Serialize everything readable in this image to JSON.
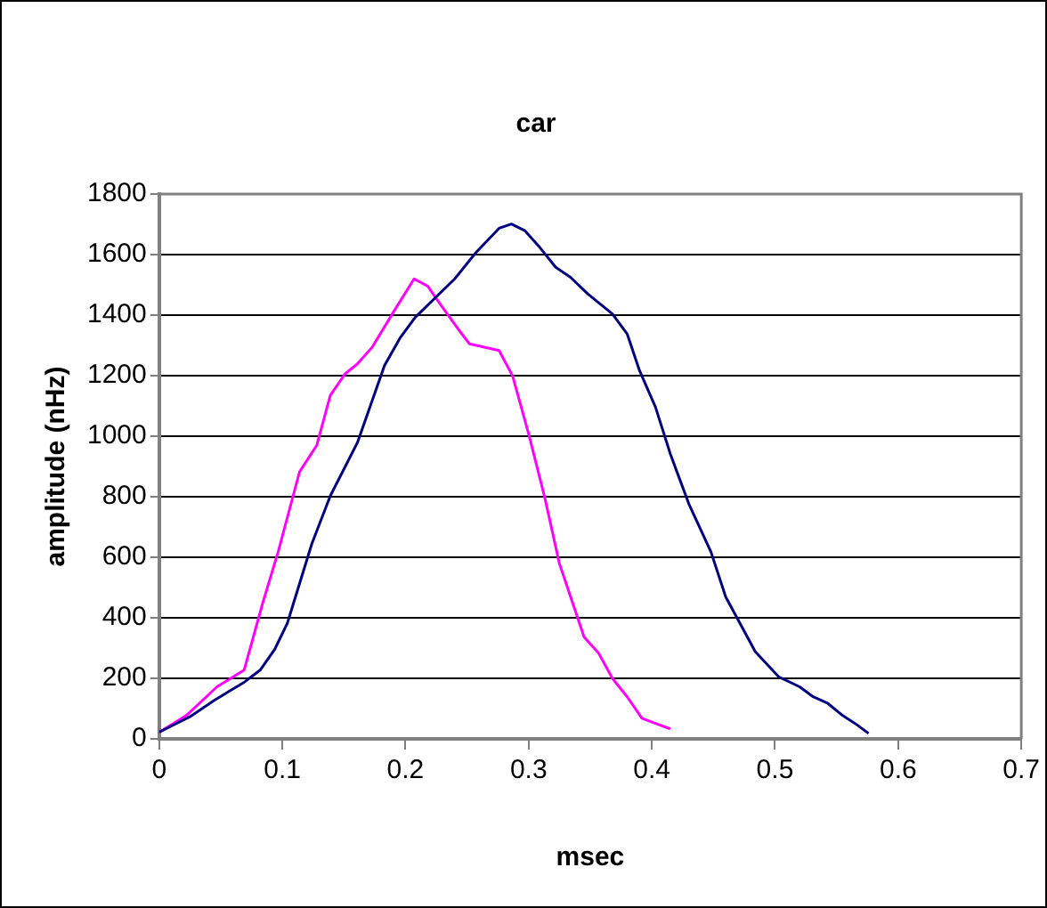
{
  "chart_data": {
    "type": "line",
    "title": "car",
    "xlabel": "msec",
    "ylabel": "amplitude (nHz)",
    "xlim": [
      0,
      0.7
    ],
    "xticks": [
      0,
      0.1,
      0.2,
      0.3,
      0.4,
      0.5,
      0.6,
      0.7
    ],
    "ylim": [
      0,
      1800
    ],
    "yticks": [
      0,
      200,
      400,
      600,
      800,
      1000,
      1200,
      1400,
      1600,
      1800
    ],
    "grid": "y",
    "legend": false,
    "marker": "none",
    "line_style": "solid",
    "series": [
      {
        "color": "#000080",
        "x": [
          0,
          0.025,
          0.045,
          0.069,
          0.082,
          0.094,
          0.104,
          0.124,
          0.139,
          0.161,
          0.183,
          0.196,
          0.208,
          0.24,
          0.257,
          0.276,
          0.286,
          0.297,
          0.309,
          0.322,
          0.334,
          0.348,
          0.368,
          0.38,
          0.39,
          0.403,
          0.415,
          0.43,
          0.448,
          0.46,
          0.484,
          0.503,
          0.52,
          0.531,
          0.543,
          0.555,
          0.565,
          0.576
        ],
        "values": [
          22,
          73,
          128,
          187,
          227,
          297,
          381,
          645,
          803,
          979,
          1234,
          1327,
          1393,
          1520,
          1606,
          1687,
          1701,
          1679,
          1624,
          1558,
          1525,
          1470,
          1404,
          1338,
          1217,
          1096,
          942,
          777,
          618,
          469,
          288,
          205,
          172,
          139,
          117,
          77,
          51,
          18
        ]
      },
      {
        "color": "#ff00ff",
        "x": [
          0,
          0.022,
          0.047,
          0.069,
          0.084,
          0.097,
          0.114,
          0.128,
          0.139,
          0.151,
          0.161,
          0.173,
          0.191,
          0.207,
          0.218,
          0.23,
          0.243,
          0.252,
          0.276,
          0.287,
          0.3,
          0.313,
          0.325,
          0.335,
          0.345,
          0.357,
          0.368,
          0.38,
          0.392,
          0.403,
          0.415
        ],
        "values": [
          22,
          77,
          172,
          227,
          447,
          623,
          882,
          970,
          1135,
          1206,
          1239,
          1294,
          1415,
          1520,
          1496,
          1426,
          1353,
          1305,
          1283,
          1199,
          1008,
          799,
          579,
          458,
          337,
          282,
          200,
          139,
          68,
          51,
          33
        ]
      }
    ]
  }
}
